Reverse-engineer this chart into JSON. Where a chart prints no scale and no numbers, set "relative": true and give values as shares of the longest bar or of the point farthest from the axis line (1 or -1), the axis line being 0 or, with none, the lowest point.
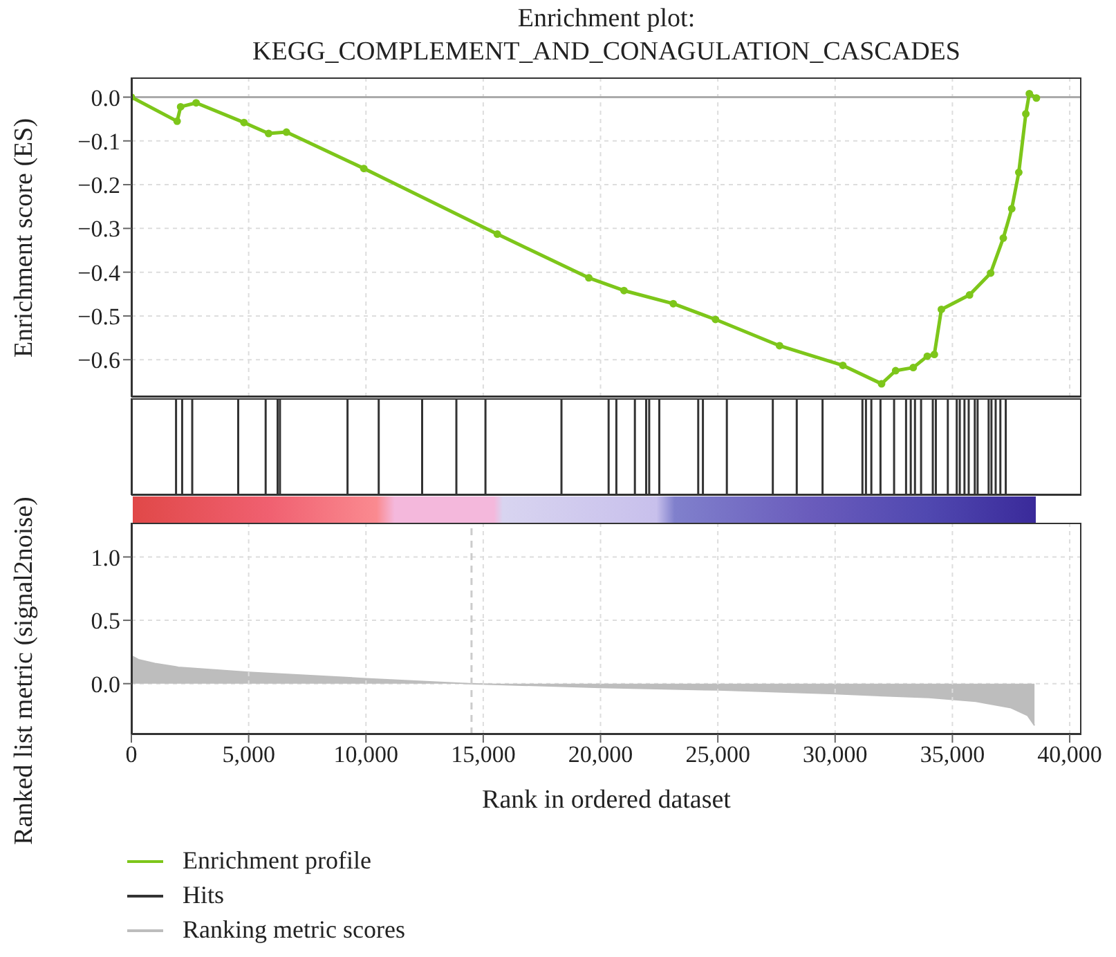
{
  "chart_data": [
    {
      "type": "line",
      "title": "Enrichment plot:",
      "subtitle": "KEGG_COMPLEMENT_AND_CONAGULATION_CASCADES",
      "ylabel": "Enrichment score (ES)",
      "x": [
        0,
        1950,
        2100,
        2760,
        4800,
        5850,
        6610,
        9910,
        15600,
        19500,
        21000,
        23100,
        24900,
        27630,
        30330,
        31980,
        32580,
        33330,
        33930,
        34230,
        34530,
        35730,
        36630,
        37170,
        37530,
        37830,
        38130,
        38280,
        38580
      ],
      "series": [
        {
          "name": "Enrichment profile",
          "color": "#7dc61a",
          "values": [
            0,
            -0.055,
            -0.022,
            -0.013,
            -0.058,
            -0.083,
            -0.08,
            -0.163,
            -0.313,
            -0.413,
            -0.442,
            -0.472,
            -0.508,
            -0.568,
            -0.613,
            -0.655,
            -0.625,
            -0.618,
            -0.592,
            -0.588,
            -0.485,
            -0.452,
            -0.402,
            -0.322,
            -0.255,
            -0.172,
            -0.038,
            0.008,
            -0.002
          ]
        }
      ],
      "xlim": [
        0,
        40500
      ],
      "ylim": [
        -0.685,
        0.045
      ],
      "xticks": [
        0,
        5000,
        10000,
        15000,
        20000,
        25000,
        30000,
        35000,
        40000
      ],
      "yticks": [
        {
          "value": 0,
          "label": "0.0"
        },
        {
          "value": -0.1,
          "label": "−0.1"
        },
        {
          "value": -0.2,
          "label": "−0.2"
        },
        {
          "value": -0.3,
          "label": "−0.3"
        },
        {
          "value": -0.4,
          "label": "−0.4"
        },
        {
          "value": -0.5,
          "label": "−0.5"
        },
        {
          "value": -0.6,
          "label": "−0.6"
        }
      ],
      "tick_labels": "y",
      "grid": true,
      "marker": "circle",
      "ref_lines": [
        {
          "axis": "y",
          "value": 0,
          "color": "#aaaaaa"
        }
      ]
    },
    {
      "type": "bar",
      "x": [
        1910,
        2170,
        2600,
        4560,
        5730,
        6240,
        6340,
        9220,
        10550,
        12400,
        13860,
        15100,
        18340,
        20350,
        20680,
        21470,
        21950,
        22080,
        22510,
        24170,
        24370,
        25390,
        27350,
        28370,
        29470,
        31170,
        31320,
        31550,
        31940,
        32520,
        33030,
        33230,
        33410,
        33670,
        34170,
        34300,
        34810,
        35190,
        35320,
        35520,
        35700,
        35960,
        36080,
        36550,
        36670,
        36850,
        37050,
        37280
      ],
      "series": [
        {
          "name": "Hits",
          "color": "#333333",
          "values": [
            1,
            1,
            1,
            1,
            1,
            1,
            1,
            1,
            1,
            1,
            1,
            1,
            1,
            1,
            1,
            1,
            1,
            1,
            1,
            1,
            1,
            1,
            1,
            1,
            1,
            1,
            1,
            1,
            1,
            1,
            1,
            1,
            1,
            1,
            1,
            1,
            1,
            1,
            1,
            1,
            1,
            1,
            1,
            1,
            1,
            1,
            1,
            1
          ]
        }
      ],
      "relative": true,
      "xlim": [
        0,
        40500
      ],
      "tick_labels": false
    },
    {
      "type": "area",
      "xlabel": "Rank in ordered dataset",
      "ylabel": "Ranked list metric (signal2noise)",
      "x": [
        0,
        300,
        1000,
        2000,
        5000,
        10000,
        14400,
        20000,
        25000,
        30000,
        34000,
        36000,
        37500,
        38200,
        38500
      ],
      "series": [
        {
          "name": "Ranking metric scores",
          "color": "#bdbdbd",
          "values": [
            0.22,
            0.19,
            0.16,
            0.13,
            0.09,
            0.04,
            0,
            -0.03,
            -0.05,
            -0.08,
            -0.11,
            -0.14,
            -0.19,
            -0.25,
            -0.33
          ]
        }
      ],
      "xlim": [
        0,
        40500
      ],
      "ylim": [
        -0.4,
        1.27
      ],
      "xticks": [
        {
          "value": 0,
          "label": "0"
        },
        {
          "value": 5000,
          "label": "5,000"
        },
        {
          "value": 10000,
          "label": "10,000"
        },
        {
          "value": 15000,
          "label": "15,000"
        },
        {
          "value": 20000,
          "label": "20,000"
        },
        {
          "value": 25000,
          "label": "25,000"
        },
        {
          "value": 30000,
          "label": "30,000"
        },
        {
          "value": 35000,
          "label": "35,000"
        },
        {
          "value": 40000,
          "label": "40,000"
        }
      ],
      "yticks": [
        {
          "value": 0,
          "label": "0.0"
        },
        {
          "value": 0.5,
          "label": "0.5"
        },
        {
          "value": 1,
          "label": "1.0"
        }
      ],
      "grid": true,
      "legend": "bottom",
      "ref_lines": [
        {
          "axis": "x",
          "value": 14500,
          "color": "#cccccc",
          "line_style": "dashed"
        }
      ]
    }
  ]
}
